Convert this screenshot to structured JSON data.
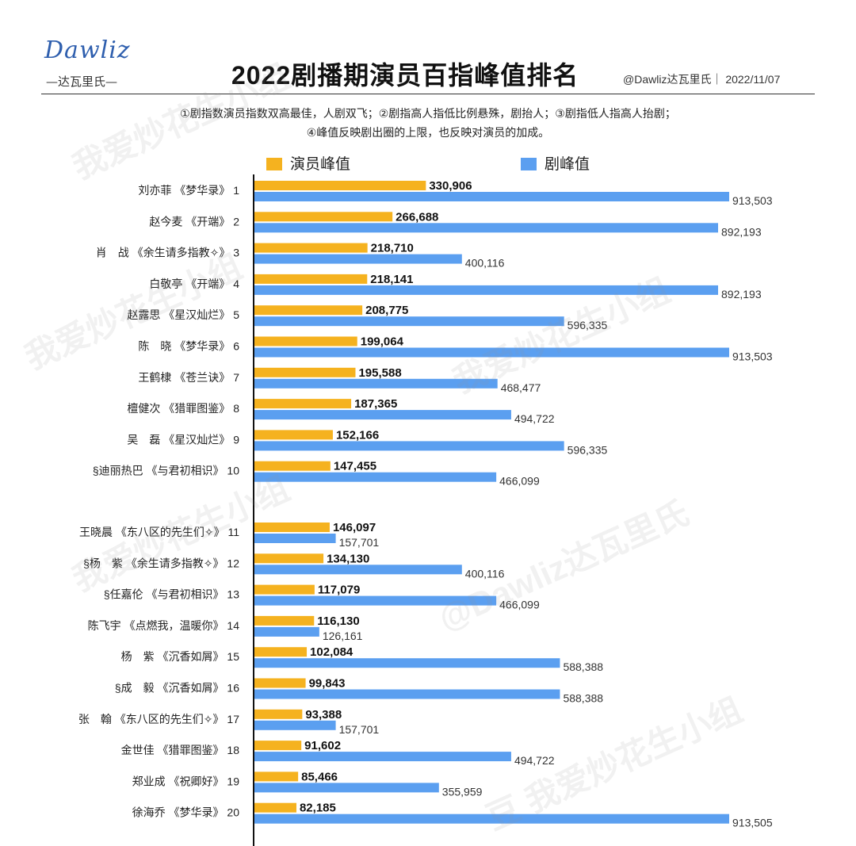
{
  "logo": {
    "mark": "Dawliz",
    "sub": "—达瓦里氏—"
  },
  "title": "2022剧播期演员百指峰值排名",
  "credit": "@Dawliz达瓦里氏｜  2022/11/07",
  "notes": [
    "①剧指数演员指数双高最佳，人剧双飞；②剧指高人指低比例悬殊，剧抬人；③剧指低人指高人抬剧；",
    "④峰值反映剧出圈的上限，也反映对演员的加成。"
  ],
  "colors": {
    "actor": "#f5b21f",
    "drama": "#5b9ff0",
    "axis": "#111111"
  },
  "watermarks": [
    "我爱炒花生小组",
    "@Dawliz达瓦里氏",
    "豆 我爱炒花生小组"
  ],
  "chart_data": {
    "type": "bar",
    "orientation": "horizontal",
    "title": "2022剧播期演员百指峰值排名",
    "legend_position": "top",
    "xlim": [
      0,
      1000000
    ],
    "series": [
      {
        "name": "演员峰值",
        "values": [
          330906,
          266688,
          218710,
          218141,
          208775,
          199064,
          195588,
          187365,
          152166,
          147455,
          146097,
          134130,
          117079,
          116130,
          102084,
          99843,
          93388,
          91602,
          85466,
          82185
        ]
      },
      {
        "name": "剧峰值",
        "values": [
          913503,
          892193,
          400116,
          892193,
          596335,
          913503,
          468477,
          494722,
          596335,
          466099,
          157701,
          400116,
          466099,
          126161,
          588388,
          588388,
          157701,
          494722,
          355959,
          913505
        ]
      }
    ],
    "categories": [
      "刘亦菲 《梦华录》 1",
      "赵今麦 《开端》 2",
      "肖　战 《余生请多指教✧》 3",
      "白敬亭 《开端》 4",
      "赵露思 《星汉灿烂》 5",
      "陈　晓 《梦华录》 6",
      "王鹤棣 《苍兰诀》 7",
      "檀健次 《猎罪图鉴》 8",
      "吴　磊 《星汉灿烂》 9",
      "§迪丽热巴 《与君初相识》 10",
      "王晓晨 《东八区的先生们✧》 11",
      "§杨　紫 《余生请多指教✧》 12",
      "§任嘉伦 《与君初相识》 13",
      "陈飞宇 《点燃我，温暖你》 14",
      "杨　紫 《沉香如屑》 15",
      "§成　毅 《沉香如屑》 16",
      "张　翰 《东八区的先生们✧》 17",
      "金世佳 《猎罪图鉴》 18",
      "郑业成 《祝卿好》 19",
      "徐海乔 《梦华录》 20"
    ],
    "actor_labels": [
      "330,906",
      "266,688",
      "218,710",
      "218,141",
      "208,775",
      "199,064",
      "195,588",
      "187,365",
      "152,166",
      "147,455",
      "146,097",
      "134,130",
      "117,079",
      "116,130",
      "102,084",
      "99,843",
      "93,388",
      "91,602",
      "85,466",
      "82,185"
    ],
    "drama_labels": [
      "913,503",
      "892,193",
      "400,116",
      "892,193",
      "596,335",
      "913,503",
      "468,477",
      "494,722",
      "596,335",
      "466,099",
      "157,701",
      "400,116",
      "466,099",
      "126,161",
      "588,388",
      "588,388",
      "157,701",
      "494,722",
      "355,959",
      "913,505"
    ]
  }
}
